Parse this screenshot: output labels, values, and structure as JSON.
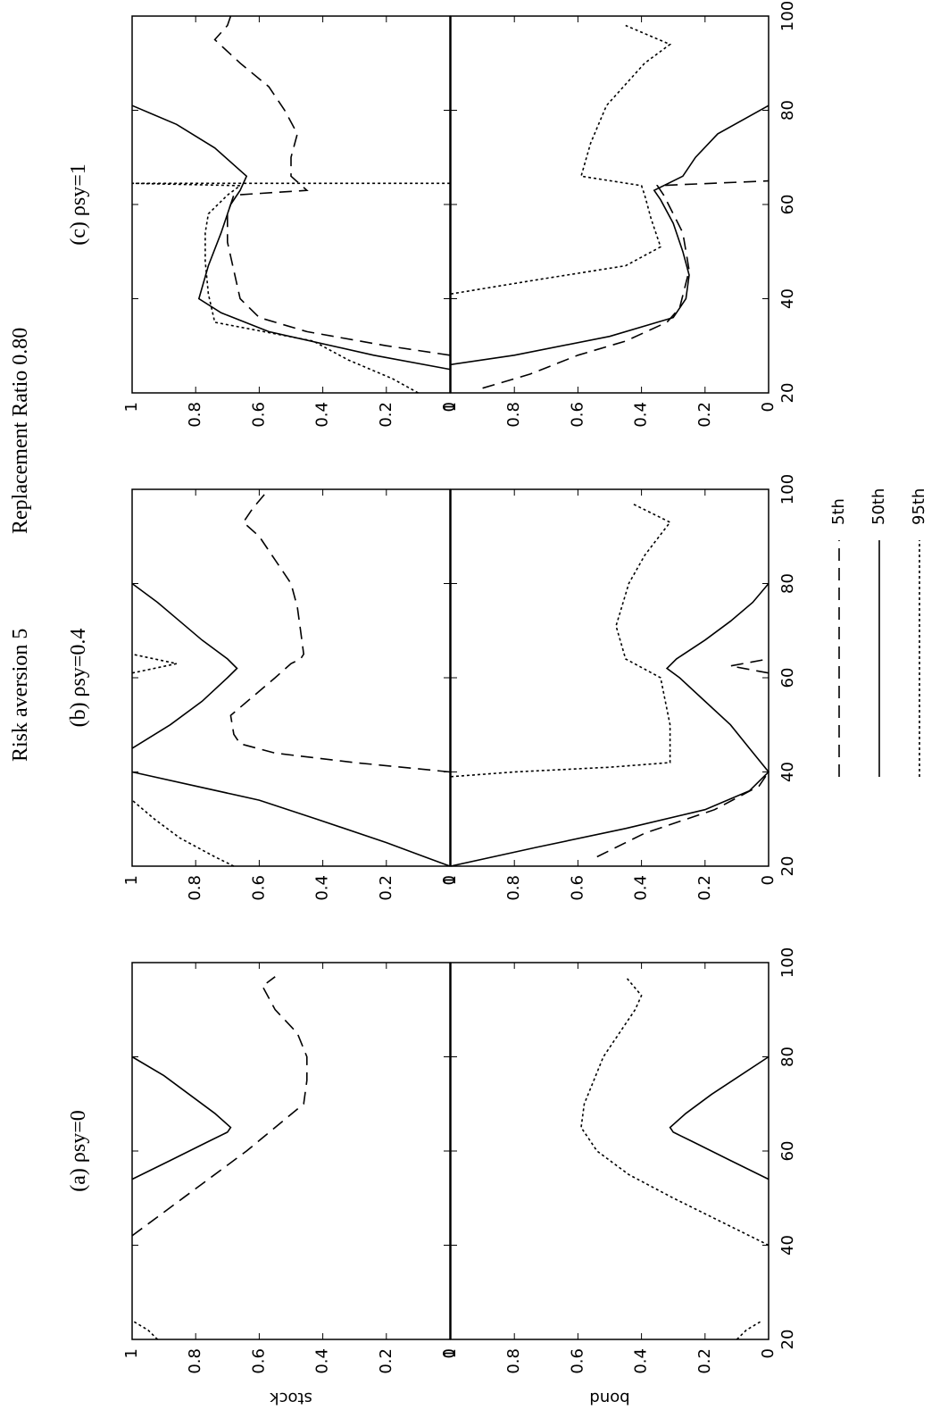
{
  "figure": {
    "title": "Risk aversion 5",
    "subtitle": "Replacement Ratio 0.80"
  },
  "chart_data": [
    {
      "type": "line",
      "title": "(a)  ρsy=0",
      "ylabel": "stock",
      "xlim": [
        20,
        100
      ],
      "ylim": [
        0,
        1
      ],
      "xticks": [
        20,
        40,
        60,
        80,
        100
      ],
      "yticks": [
        0,
        0.2,
        0.4,
        0.6,
        0.8,
        1
      ],
      "series": [
        {
          "name": "5th",
          "color": "#000000",
          "style": "dashed",
          "x": [
            42,
            50,
            56,
            60,
            65,
            70,
            75,
            80,
            85,
            90,
            95,
            97
          ],
          "values": [
            1,
            0.84,
            0.72,
            0.64,
            0.55,
            0.46,
            0.45,
            0.45,
            0.48,
            0.55,
            0.59,
            0.55
          ]
        },
        {
          "name": "50th",
          "color": "#000000",
          "style": "solid",
          "x": [
            54,
            58,
            62,
            64,
            65,
            68,
            72,
            76,
            80
          ],
          "values": [
            1,
            0.88,
            0.76,
            0.7,
            0.69,
            0.74,
            0.82,
            0.9,
            1
          ]
        },
        {
          "name": "95th",
          "color": "#000000",
          "style": "dotted",
          "x": [
            20,
            22,
            24
          ],
          "values": [
            0.92,
            0.95,
            1
          ]
        }
      ]
    },
    {
      "type": "line",
      "ylabel": "bond",
      "xlim": [
        20,
        100
      ],
      "ylim": [
        0,
        1
      ],
      "xticks": [
        20,
        40,
        60,
        80,
        100
      ],
      "yticks": [
        0,
        0.2,
        0.4,
        0.6,
        0.8,
        1
      ],
      "series": [
        {
          "name": "50th",
          "color": "#000000",
          "style": "solid",
          "x": [
            54,
            58,
            62,
            64,
            65,
            68,
            72,
            76,
            80
          ],
          "values": [
            0,
            0.12,
            0.24,
            0.3,
            0.31,
            0.26,
            0.18,
            0.09,
            0
          ]
        },
        {
          "name": "95th",
          "color": "#000000",
          "style": "dotted",
          "x": [
            20,
            22,
            24,
            30,
            40,
            45,
            50,
            55,
            60,
            65,
            70,
            75,
            80,
            85,
            90,
            93,
            97
          ],
          "values": [
            0.1,
            0.07,
            0.02,
            null,
            0,
            0.15,
            0.3,
            0.44,
            0.54,
            0.59,
            0.58,
            0.55,
            0.52,
            0.47,
            0.42,
            0.4,
            0.45
          ]
        }
      ]
    },
    {
      "type": "line",
      "title": "(b)  ρsy=0.4",
      "xlim": [
        20,
        100
      ],
      "ylim": [
        0,
        1
      ],
      "xticks": [
        20,
        40,
        60,
        80,
        100
      ],
      "yticks": [
        0,
        0.2,
        0.4,
        0.6,
        0.8,
        1
      ],
      "series": [
        {
          "name": "5th",
          "color": "#000000",
          "style": "dashed",
          "x": [
            40,
            42,
            44,
            46,
            48,
            52,
            56,
            60,
            63,
            64,
            65,
            70,
            75,
            80,
            85,
            90,
            93,
            96,
            100
          ],
          "values": [
            0,
            0.3,
            0.55,
            0.66,
            0.68,
            0.69,
            0.62,
            0.55,
            0.5,
            0.47,
            0.46,
            0.47,
            0.48,
            0.5,
            0.55,
            0.6,
            0.65,
            0.62,
            0.57
          ]
        },
        {
          "name": "50th",
          "color": "#000000",
          "style": "solid",
          "x": [
            20,
            22,
            25,
            30,
            34,
            37,
            40,
            42,
            45,
            50,
            55,
            60,
            62,
            64,
            68,
            72,
            76,
            80
          ],
          "values": [
            0,
            0.08,
            0.2,
            0.42,
            0.6,
            0.8,
            1,
            null,
            1,
            0.88,
            0.78,
            0.7,
            0.67,
            0.7,
            0.78,
            0.85,
            0.92,
            1
          ]
        },
        {
          "name": "95th",
          "color": "#000000",
          "style": "dotted",
          "x": [
            20,
            22,
            26,
            30,
            34,
            50,
            61,
            62,
            63,
            64,
            65
          ],
          "values": [
            0.68,
            0.74,
            0.85,
            0.93,
            1,
            null,
            1,
            0.93,
            0.86,
            0.93,
            1
          ]
        }
      ]
    },
    {
      "type": "line",
      "xlim": [
        20,
        100
      ],
      "ylim": [
        0,
        1
      ],
      "xticks": [
        20,
        40,
        60,
        80,
        100
      ],
      "yticks": [
        0,
        0.2,
        0.4,
        0.6,
        0.8,
        1
      ],
      "series": [
        {
          "name": "5th",
          "color": "#000000",
          "style": "dashed",
          "x": [
            22,
            27,
            32,
            37,
            40,
            50,
            61,
            62.5,
            64
          ],
          "values": [
            0.54,
            0.39,
            0.17,
            0.03,
            0,
            null,
            0,
            0.12,
            0
          ]
        },
        {
          "name": "50th",
          "color": "#000000",
          "style": "solid",
          "x": [
            20,
            24,
            28,
            32,
            36,
            40,
            45,
            50,
            55,
            60,
            62,
            64,
            68,
            72,
            76,
            80
          ],
          "values": [
            1,
            0.73,
            0.45,
            0.2,
            0.06,
            0,
            0.06,
            0.12,
            0.2,
            0.28,
            0.32,
            0.29,
            0.2,
            0.12,
            0.05,
            0
          ]
        },
        {
          "name": "95th",
          "color": "#000000",
          "style": "dotted",
          "x": [
            39,
            40,
            41,
            42,
            50,
            60,
            64,
            71,
            80,
            86,
            93,
            97
          ],
          "values": [
            1,
            0.8,
            0.5,
            0.31,
            0.31,
            0.34,
            0.45,
            0.48,
            0.44,
            0.39,
            0.31,
            0.43
          ]
        }
      ]
    },
    {
      "type": "line",
      "title": "(c)  ρsy=1",
      "xlim": [
        20,
        100
      ],
      "ylim": [
        0,
        1
      ],
      "xticks": [
        20,
        40,
        60,
        80,
        100
      ],
      "yticks": [
        0,
        0.2,
        0.4,
        0.6,
        0.8,
        1
      ],
      "series": [
        {
          "name": "5th",
          "color": "#000000",
          "style": "dashed",
          "x": [
            28,
            30,
            33,
            36,
            40,
            46,
            52,
            58,
            62,
            63,
            66,
            70,
            75,
            80,
            85,
            90,
            95,
            98,
            100
          ],
          "values": [
            0,
            0.2,
            0.45,
            0.6,
            0.66,
            0.68,
            0.7,
            0.7,
            0.68,
            0.45,
            0.5,
            0.5,
            0.48,
            0.52,
            0.57,
            0.66,
            0.74,
            0.7,
            0.69
          ]
        },
        {
          "name": "50th",
          "color": "#000000",
          "style": "solid",
          "x": [
            25,
            28,
            33,
            37,
            40,
            47,
            54,
            60,
            63,
            66,
            72,
            77,
            81
          ],
          "values": [
            0,
            0.24,
            0.57,
            0.72,
            0.79,
            0.76,
            0.72,
            0.69,
            0.66,
            0.64,
            0.74,
            0.86,
            1
          ]
        },
        {
          "name": "95th",
          "color": "#000000",
          "style": "dotted",
          "x": [
            20,
            23,
            27,
            31,
            35,
            41,
            48,
            54,
            58,
            62,
            64,
            64.5,
            64.5
          ],
          "values": [
            0.1,
            0.18,
            0.32,
            0.43,
            0.74,
            0.76,
            0.77,
            0.77,
            0.76,
            0.7,
            0.66,
            1,
            0
          ]
        }
      ]
    },
    {
      "type": "line",
      "xlim": [
        20,
        100
      ],
      "ylim": [
        0,
        1
      ],
      "xticks": [
        20,
        40,
        60,
        80,
        100
      ],
      "yticks": [
        0,
        0.2,
        0.4,
        0.6,
        0.8,
        1
      ],
      "series": [
        {
          "name": "5th",
          "color": "#000000",
          "style": "dashed",
          "x": [
            21,
            24,
            28,
            31,
            35,
            38,
            46,
            54,
            58,
            62,
            64,
            65
          ],
          "values": [
            0.9,
            0.75,
            0.6,
            0.45,
            0.32,
            0.28,
            0.25,
            0.27,
            0.3,
            0.33,
            0.35,
            0
          ]
        },
        {
          "name": "50th",
          "color": "#000000",
          "style": "solid",
          "x": [
            26,
            28,
            32,
            36,
            40,
            45,
            50,
            56,
            61,
            63,
            66,
            70,
            75,
            81
          ],
          "values": [
            1,
            0.8,
            0.5,
            0.3,
            0.26,
            0.25,
            0.27,
            0.3,
            0.34,
            0.36,
            0.27,
            0.23,
            0.16,
            0
          ]
        },
        {
          "name": "95th",
          "color": "#000000",
          "style": "dotted",
          "x": [
            41,
            44,
            47,
            51,
            57,
            62,
            64,
            66,
            73,
            81,
            90,
            94,
            98
          ],
          "values": [
            1,
            0.73,
            0.45,
            0.34,
            0.37,
            0.39,
            0.4,
            0.59,
            0.56,
            0.51,
            0.39,
            0.31,
            0.45
          ]
        }
      ]
    }
  ]
}
